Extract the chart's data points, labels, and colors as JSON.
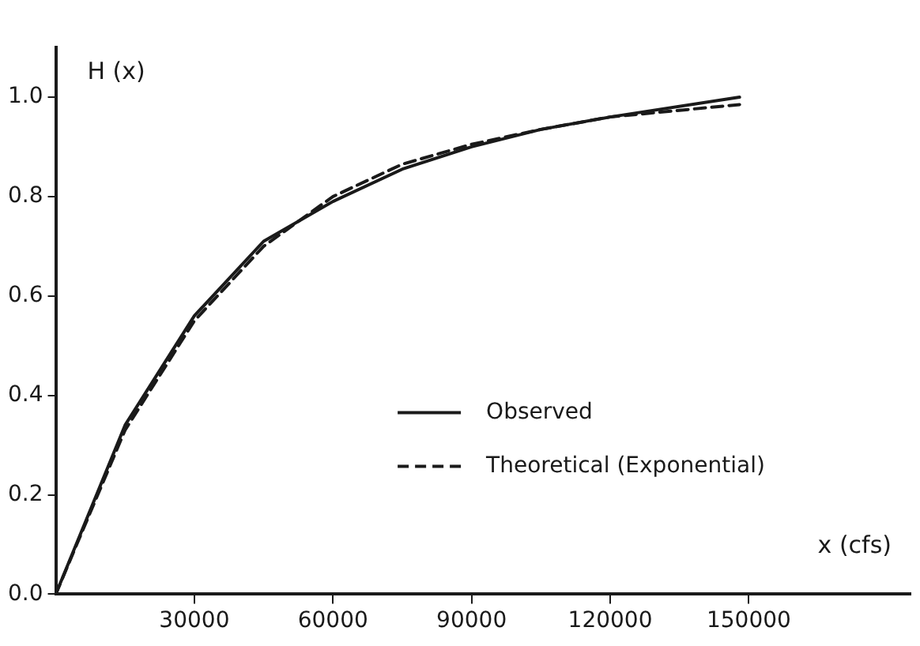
{
  "chart_data": {
    "type": "line",
    "xlabel": "x (cfs)",
    "ylabel": "H (x)",
    "xlim": [
      0,
      185000
    ],
    "xticks": [
      30000,
      60000,
      90000,
      120000,
      150000
    ],
    "ylim": [
      0,
      1.1
    ],
    "yticks": [
      {
        "value": 0,
        "label": "0.0"
      },
      {
        "value": 0.2,
        "label": "0.2"
      },
      {
        "value": 0.4,
        "label": "0.4"
      },
      {
        "value": 0.6,
        "label": "0.6"
      },
      {
        "value": 0.8,
        "label": "0.8"
      },
      {
        "value": 1,
        "label": "1.0"
      }
    ],
    "grid": false,
    "legend": "bottom right",
    "marker": "none",
    "series": [
      {
        "name": "Observed",
        "color": "#1a1a1a",
        "line_style": "solid",
        "x": [
          0,
          15000,
          30000,
          45000,
          60000,
          75000,
          90000,
          105000,
          120000,
          148000
        ],
        "values": [
          0,
          0.34,
          0.56,
          0.71,
          0.79,
          0.855,
          0.9,
          0.935,
          0.96,
          1.0
        ]
      },
      {
        "name": "Theoretical (Exponential)",
        "color": "#1a1a1a",
        "line_style": "dashed",
        "x": [
          0,
          15000,
          30000,
          45000,
          60000,
          75000,
          90000,
          105000,
          120000,
          148000
        ],
        "values": [
          0,
          0.33,
          0.55,
          0.7,
          0.8,
          0.865,
          0.905,
          0.935,
          0.96,
          0.985
        ]
      }
    ]
  }
}
